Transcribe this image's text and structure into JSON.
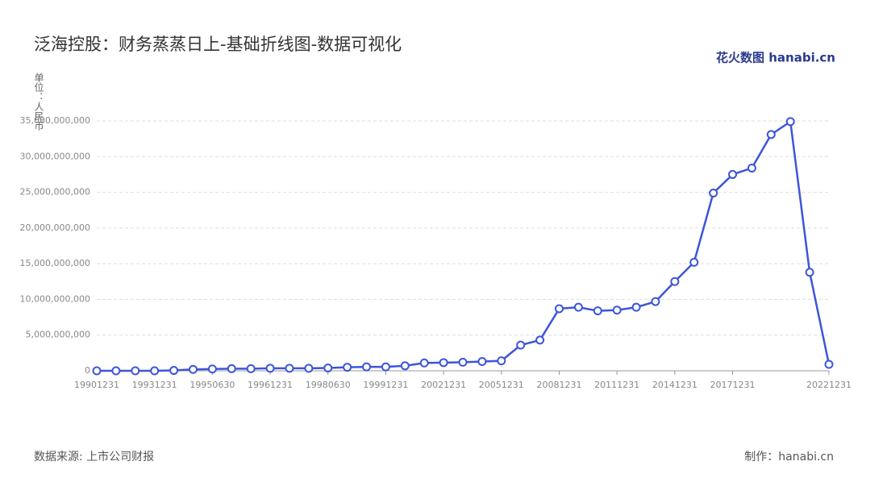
{
  "chart_data": {
    "type": "line",
    "title": "泛海控股：财务蒸蒸日上-基础折线图-数据可视化",
    "y_label": "单位：人民币",
    "logo": "花火数图 hanabi.cn",
    "source": "数据来源: 上市公司财报",
    "credit": "制作：hanabi.cn",
    "categories": [
      "19901231",
      null,
      null,
      "19931231",
      null,
      null,
      "19950630",
      null,
      null,
      "19961231",
      null,
      null,
      "19980630",
      null,
      null,
      "19991231",
      null,
      null,
      "20021231",
      null,
      null,
      "20051231",
      null,
      null,
      "20081231",
      null,
      null,
      "20111231",
      null,
      null,
      "20141231",
      null,
      null,
      "20171231",
      null,
      null,
      null,
      null,
      "20221231"
    ],
    "series": [
      {
        "name": "泛海控股",
        "color": "#3d55d9",
        "values": [
          0,
          0,
          0,
          0,
          50000000,
          200000000,
          250000000,
          300000000,
          300000000,
          350000000,
          350000000,
          350000000,
          400000000,
          500000000,
          550000000,
          550000000,
          700000000,
          1100000000,
          1150000000,
          1200000000,
          1300000000,
          1400000000,
          3600000000,
          4300000000,
          8700000000,
          8900000000,
          8400000000,
          8500000000,
          8900000000,
          9700000000,
          12500000000,
          15200000000,
          24900000000,
          27500000000,
          28400000000,
          33100000000,
          34900000000,
          13800000000,
          900000000
        ]
      }
    ],
    "ylim": [
      0,
      35000000000
    ],
    "yticks": [
      0,
      {
        "value": 5000000000,
        "label": "5,000,000,000"
      },
      {
        "value": 10000000000,
        "label": "10,000,000,000"
      },
      {
        "value": 15000000000,
        "label": "15,000,000,000"
      },
      {
        "value": 20000000000,
        "label": "20,000,000,000"
      },
      {
        "value": 25000000000,
        "label": "25,000,000,000"
      },
      {
        "value": 30000000000,
        "label": "30,000,000,000"
      },
      {
        "value": 35000000000,
        "label": "35,000,000,000"
      }
    ],
    "grid": true
  }
}
